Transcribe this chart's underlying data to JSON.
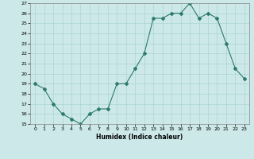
{
  "x": [
    0,
    1,
    2,
    3,
    4,
    5,
    6,
    7,
    8,
    9,
    10,
    11,
    12,
    13,
    14,
    15,
    16,
    17,
    18,
    19,
    20,
    21,
    22,
    23
  ],
  "y": [
    19,
    18.5,
    17,
    16,
    15.5,
    15,
    16,
    16.5,
    16.5,
    19,
    19,
    20.5,
    22,
    25.5,
    25.5,
    26,
    26,
    27,
    25.5,
    26,
    25.5,
    23,
    20.5,
    19.5
  ],
  "ylim": [
    15,
    27
  ],
  "xlim": [
    -0.5,
    23.5
  ],
  "yticks": [
    15,
    16,
    17,
    18,
    19,
    20,
    21,
    22,
    23,
    24,
    25,
    26,
    27
  ],
  "xticks": [
    0,
    1,
    2,
    3,
    4,
    5,
    6,
    7,
    8,
    9,
    10,
    11,
    12,
    13,
    14,
    15,
    16,
    17,
    18,
    19,
    20,
    21,
    22,
    23
  ],
  "xlabel": "Humidex (Indice chaleur)",
  "line_color": "#2d7a6e",
  "marker": "D",
  "marker_size": 2,
  "bg_color": "#cce8e8",
  "grid_color": "#aad4d4"
}
